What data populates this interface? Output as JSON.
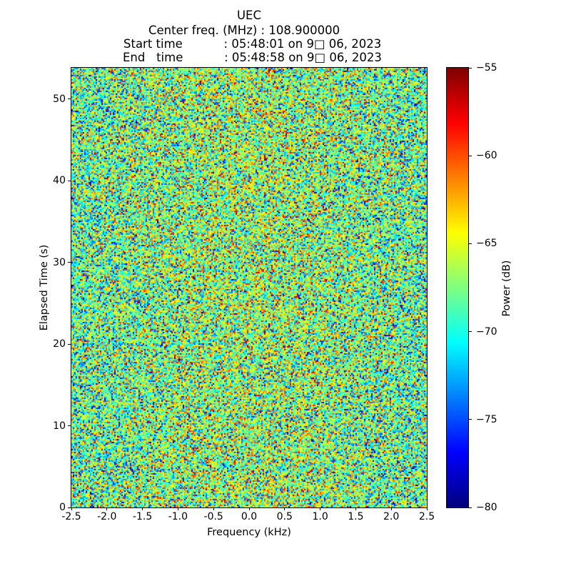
{
  "header": {
    "line1": "UEC",
    "line2": "Center freq. (MHz) : 108.900000",
    "line3": "Start time           : 05:48:01 on 9□ 06, 2023",
    "line4": "End   time           : 05:48:58 on 9□ 06, 2023"
  },
  "chart_data": {
    "type": "heatmap",
    "title": "UEC",
    "annotations": {
      "center_freq_mhz": "108.900000",
      "start_time": "05:48:01 on 9□ 06, 2023",
      "end_time": "05:48:58 on 9□ 06, 2023"
    },
    "xlabel": "Frequency (kHz)",
    "ylabel": "Elapsed Time (s)",
    "xlim": [
      -2.5,
      2.5
    ],
    "ylim": [
      0,
      53.8
    ],
    "x_ticks": {
      "values": [
        -2.5,
        -2.0,
        -1.5,
        -1.0,
        -0.5,
        0.0,
        0.5,
        1.0,
        1.5,
        2.0,
        2.5
      ],
      "labels": [
        "-2.5",
        "-2.0",
        "-1.5",
        "-1.0",
        "-0.5",
        "0.0",
        "0.5",
        "1.0",
        "1.5",
        "2.0",
        "2.5"
      ]
    },
    "y_ticks": {
      "values": [
        0,
        10,
        20,
        30,
        40,
        50
      ],
      "labels": [
        "0",
        "10",
        "20",
        "30",
        "40",
        "50"
      ]
    },
    "colorbar": {
      "label": "Power (dB)",
      "vmin": -80,
      "vmax": -55,
      "tick_values": [
        -55,
        -60,
        -65,
        -70,
        -75,
        -80
      ],
      "tick_labels": [
        "−55",
        "−60",
        "−65",
        "−70",
        "−75",
        "−80"
      ],
      "colormap": "jet"
    },
    "noise": {
      "distribution": "gaussian",
      "mean_db": -68.6,
      "center_boost_db": 1.8,
      "std_db": 4.6,
      "seed": 1337,
      "cols": 249,
      "rows": 308
    },
    "grid": false
  }
}
